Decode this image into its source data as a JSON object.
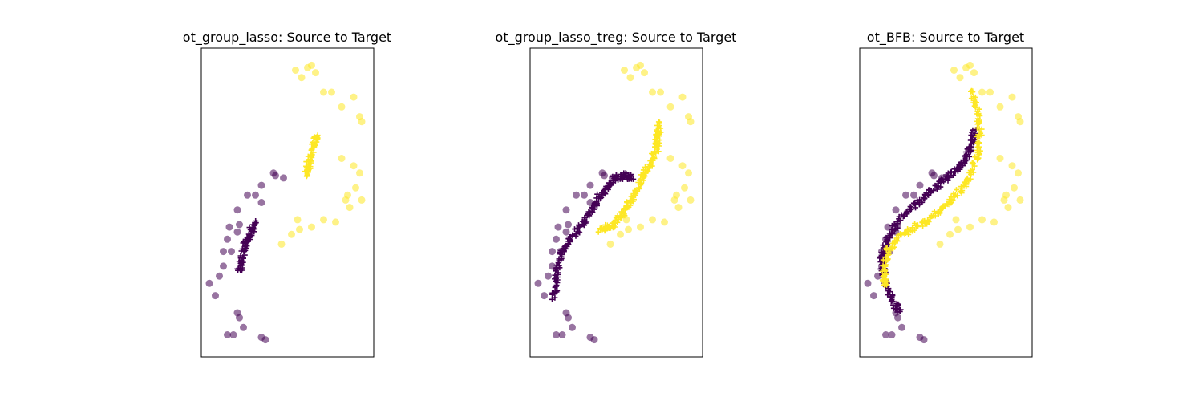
{
  "figure": {
    "titles": [
      "ot_group_lasso: Source to Target",
      "ot_group_lasso_treg: Source to Target",
      "ot_BFB: Source to Target"
    ]
  },
  "colors": {
    "class_0": "#440154",
    "class_1": "#fde725",
    "axes": "#000000"
  },
  "chart_data": [
    {
      "type": "scatter",
      "title": "ot_group_lasso: Source to Target",
      "xlabel": "",
      "ylabel": "",
      "ticks": "none",
      "series": [
        {
          "marker": "circle-transparent",
          "class": 0,
          "points": [
            [
              0.7,
              1.05
            ],
            [
              0.95,
              0.95
            ],
            [
              0.75,
              1.0
            ],
            [
              0.4,
              0.8
            ],
            [
              0.25,
              0.6
            ],
            [
              0.4,
              0.45
            ],
            [
              0.05,
              0.6
            ],
            [
              -0.2,
              0.3
            ],
            [
              -0.15,
              0.0
            ],
            [
              -0.2,
              -0.15
            ],
            [
              -0.4,
              -0.05
            ],
            [
              -0.45,
              -0.3
            ],
            [
              -0.55,
              -0.55
            ],
            [
              -0.35,
              -0.55
            ],
            [
              -0.55,
              -0.85
            ],
            [
              -0.65,
              -1.05
            ],
            [
              -0.9,
              -1.2
            ],
            [
              -0.75,
              -1.45
            ],
            [
              -0.2,
              -1.8
            ],
            [
              -0.15,
              -1.9
            ],
            [
              -0.45,
              -2.25
            ],
            [
              -0.05,
              -2.1
            ],
            [
              -0.3,
              -2.25
            ],
            [
              0.4,
              -2.3
            ],
            [
              0.5,
              -2.35
            ]
          ]
        },
        {
          "marker": "circle-transparent",
          "class": 1,
          "points": [
            [
              1.25,
              3.15
            ],
            [
              1.4,
              3.0
            ],
            [
              1.55,
              3.2
            ],
            [
              1.75,
              3.1
            ],
            [
              1.65,
              3.25
            ],
            [
              1.95,
              2.7
            ],
            [
              2.15,
              2.7
            ],
            [
              2.4,
              2.4
            ],
            [
              2.7,
              2.6
            ],
            [
              2.85,
              2.2
            ],
            [
              2.9,
              2.1
            ],
            [
              2.4,
              1.35
            ],
            [
              2.7,
              1.2
            ],
            [
              2.85,
              1.05
            ],
            [
              2.75,
              0.75
            ],
            [
              2.55,
              0.6
            ],
            [
              2.5,
              0.5
            ],
            [
              2.9,
              0.5
            ],
            [
              2.6,
              0.35
            ],
            [
              2.25,
              0.05
            ],
            [
              1.95,
              0.1
            ],
            [
              1.65,
              -0.05
            ],
            [
              1.35,
              -0.1
            ],
            [
              1.15,
              -0.2
            ],
            [
              1.3,
              0.1
            ],
            [
              0.9,
              -0.4
            ]
          ]
        },
        {
          "marker": "plus",
          "class": 0,
          "path": [
            [
              -0.15,
              -0.95
            ],
            [
              -0.1,
              -0.7
            ],
            [
              0.0,
              -0.4
            ],
            [
              0.1,
              -0.2
            ],
            [
              0.25,
              0.05
            ]
          ]
        },
        {
          "marker": "plus",
          "class": 1,
          "path": [
            [
              1.5,
              1.0
            ],
            [
              1.58,
              1.25
            ],
            [
              1.68,
              1.55
            ],
            [
              1.78,
              1.85
            ]
          ]
        }
      ]
    },
    {
      "type": "scatter",
      "title": "ot_group_lasso_treg: Source to Target",
      "xlabel": "",
      "ylabel": "",
      "ticks": "none",
      "series": [
        {
          "marker": "circle-transparent",
          "class": 0,
          "points": [
            [
              0.7,
              1.05
            ],
            [
              0.95,
              0.95
            ],
            [
              0.75,
              1.0
            ],
            [
              0.4,
              0.8
            ],
            [
              0.25,
              0.6
            ],
            [
              0.4,
              0.45
            ],
            [
              0.05,
              0.6
            ],
            [
              -0.2,
              0.3
            ],
            [
              -0.15,
              0.0
            ],
            [
              -0.2,
              -0.15
            ],
            [
              -0.4,
              -0.05
            ],
            [
              -0.45,
              -0.3
            ],
            [
              -0.55,
              -0.55
            ],
            [
              -0.35,
              -0.55
            ],
            [
              -0.55,
              -0.85
            ],
            [
              -0.65,
              -1.05
            ],
            [
              -0.9,
              -1.2
            ],
            [
              -0.75,
              -1.45
            ],
            [
              -0.2,
              -1.8
            ],
            [
              -0.15,
              -1.9
            ],
            [
              -0.45,
              -2.25
            ],
            [
              -0.05,
              -2.1
            ],
            [
              -0.3,
              -2.25
            ],
            [
              0.4,
              -2.3
            ],
            [
              0.5,
              -2.35
            ]
          ]
        },
        {
          "marker": "circle-transparent",
          "class": 1,
          "points": [
            [
              1.25,
              3.15
            ],
            [
              1.4,
              3.0
            ],
            [
              1.55,
              3.2
            ],
            [
              1.75,
              3.1
            ],
            [
              1.65,
              3.25
            ],
            [
              1.95,
              2.7
            ],
            [
              2.15,
              2.7
            ],
            [
              2.4,
              2.4
            ],
            [
              2.7,
              2.6
            ],
            [
              2.85,
              2.2
            ],
            [
              2.9,
              2.1
            ],
            [
              2.4,
              1.35
            ],
            [
              2.7,
              1.2
            ],
            [
              2.85,
              1.05
            ],
            [
              2.75,
              0.75
            ],
            [
              2.55,
              0.6
            ],
            [
              2.5,
              0.5
            ],
            [
              2.9,
              0.5
            ],
            [
              2.6,
              0.35
            ],
            [
              2.25,
              0.05
            ],
            [
              1.95,
              0.1
            ],
            [
              1.65,
              -0.05
            ],
            [
              1.35,
              -0.1
            ],
            [
              1.15,
              -0.2
            ],
            [
              1.3,
              0.1
            ],
            [
              0.9,
              -0.4
            ]
          ]
        },
        {
          "marker": "plus",
          "class": 0,
          "path": [
            [
              -0.5,
              -1.5
            ],
            [
              -0.45,
              -1.0
            ],
            [
              -0.3,
              -0.6
            ],
            [
              -0.1,
              -0.3
            ],
            [
              0.2,
              0.0
            ],
            [
              0.45,
              0.3
            ],
            [
              0.65,
              0.6
            ],
            [
              0.85,
              0.8
            ],
            [
              1.05,
              0.95
            ],
            [
              1.3,
              1.0
            ],
            [
              1.45,
              0.95
            ]
          ]
        },
        {
          "marker": "plus",
          "class": 1,
          "path": [
            [
              0.65,
              -0.1
            ],
            [
              0.9,
              -0.05
            ],
            [
              1.1,
              0.1
            ],
            [
              1.3,
              0.35
            ],
            [
              1.5,
              0.6
            ],
            [
              1.7,
              0.95
            ],
            [
              1.9,
              1.25
            ],
            [
              2.05,
              1.55
            ],
            [
              2.1,
              1.85
            ],
            [
              2.1,
              2.05
            ]
          ]
        }
      ]
    },
    {
      "type": "scatter",
      "title": "ot_BFB: Source to Target",
      "xlabel": "",
      "ylabel": "",
      "ticks": "none",
      "series": [
        {
          "marker": "circle-transparent",
          "class": 0,
          "points": [
            [
              0.7,
              1.05
            ],
            [
              0.95,
              0.95
            ],
            [
              0.75,
              1.0
            ],
            [
              0.4,
              0.8
            ],
            [
              0.25,
              0.6
            ],
            [
              0.4,
              0.45
            ],
            [
              0.05,
              0.6
            ],
            [
              -0.2,
              0.3
            ],
            [
              -0.15,
              0.0
            ],
            [
              -0.2,
              -0.15
            ],
            [
              -0.4,
              -0.05
            ],
            [
              -0.45,
              -0.3
            ],
            [
              -0.55,
              -0.55
            ],
            [
              -0.35,
              -0.55
            ],
            [
              -0.55,
              -0.85
            ],
            [
              -0.65,
              -1.05
            ],
            [
              -0.9,
              -1.2
            ],
            [
              -0.75,
              -1.45
            ],
            [
              -0.2,
              -1.8
            ],
            [
              -0.15,
              -1.9
            ],
            [
              -0.45,
              -2.25
            ],
            [
              -0.05,
              -2.1
            ],
            [
              -0.3,
              -2.25
            ],
            [
              0.4,
              -2.3
            ],
            [
              0.5,
              -2.35
            ]
          ]
        },
        {
          "marker": "circle-transparent",
          "class": 1,
          "points": [
            [
              1.25,
              3.15
            ],
            [
              1.4,
              3.0
            ],
            [
              1.55,
              3.2
            ],
            [
              1.75,
              3.1
            ],
            [
              1.65,
              3.25
            ],
            [
              1.95,
              2.7
            ],
            [
              2.15,
              2.7
            ],
            [
              2.4,
              2.4
            ],
            [
              2.7,
              2.6
            ],
            [
              2.85,
              2.2
            ],
            [
              2.9,
              2.1
            ],
            [
              2.4,
              1.35
            ],
            [
              2.7,
              1.2
            ],
            [
              2.85,
              1.05
            ],
            [
              2.75,
              0.75
            ],
            [
              2.55,
              0.6
            ],
            [
              2.5,
              0.5
            ],
            [
              2.9,
              0.5
            ],
            [
              2.6,
              0.35
            ],
            [
              2.25,
              0.05
            ],
            [
              1.95,
              0.1
            ],
            [
              1.65,
              -0.05
            ],
            [
              1.35,
              -0.1
            ],
            [
              1.15,
              -0.2
            ],
            [
              1.3,
              0.1
            ],
            [
              0.9,
              -0.4
            ]
          ]
        },
        {
          "marker": "plus",
          "class": 0,
          "path": [
            [
              -0.1,
              -1.8
            ],
            [
              -0.3,
              -1.5
            ],
            [
              -0.5,
              -1.1
            ],
            [
              -0.55,
              -0.7
            ],
            [
              -0.45,
              -0.35
            ],
            [
              -0.2,
              0.0
            ],
            [
              0.2,
              0.35
            ],
            [
              0.6,
              0.65
            ],
            [
              1.0,
              0.9
            ],
            [
              1.3,
              1.1
            ],
            [
              1.55,
              1.35
            ],
            [
              1.7,
              1.65
            ],
            [
              1.75,
              1.9
            ]
          ]
        },
        {
          "marker": "plus",
          "class": 1,
          "path": [
            [
              -0.45,
              -1.25
            ],
            [
              -0.5,
              -0.9
            ],
            [
              -0.4,
              -0.55
            ],
            [
              -0.1,
              -0.25
            ],
            [
              0.3,
              -0.05
            ],
            [
              0.8,
              0.2
            ],
            [
              1.2,
              0.5
            ],
            [
              1.55,
              0.85
            ],
            [
              1.8,
              1.3
            ],
            [
              1.9,
              1.8
            ],
            [
              1.85,
              2.3
            ],
            [
              1.7,
              2.75
            ]
          ]
        }
      ]
    }
  ]
}
